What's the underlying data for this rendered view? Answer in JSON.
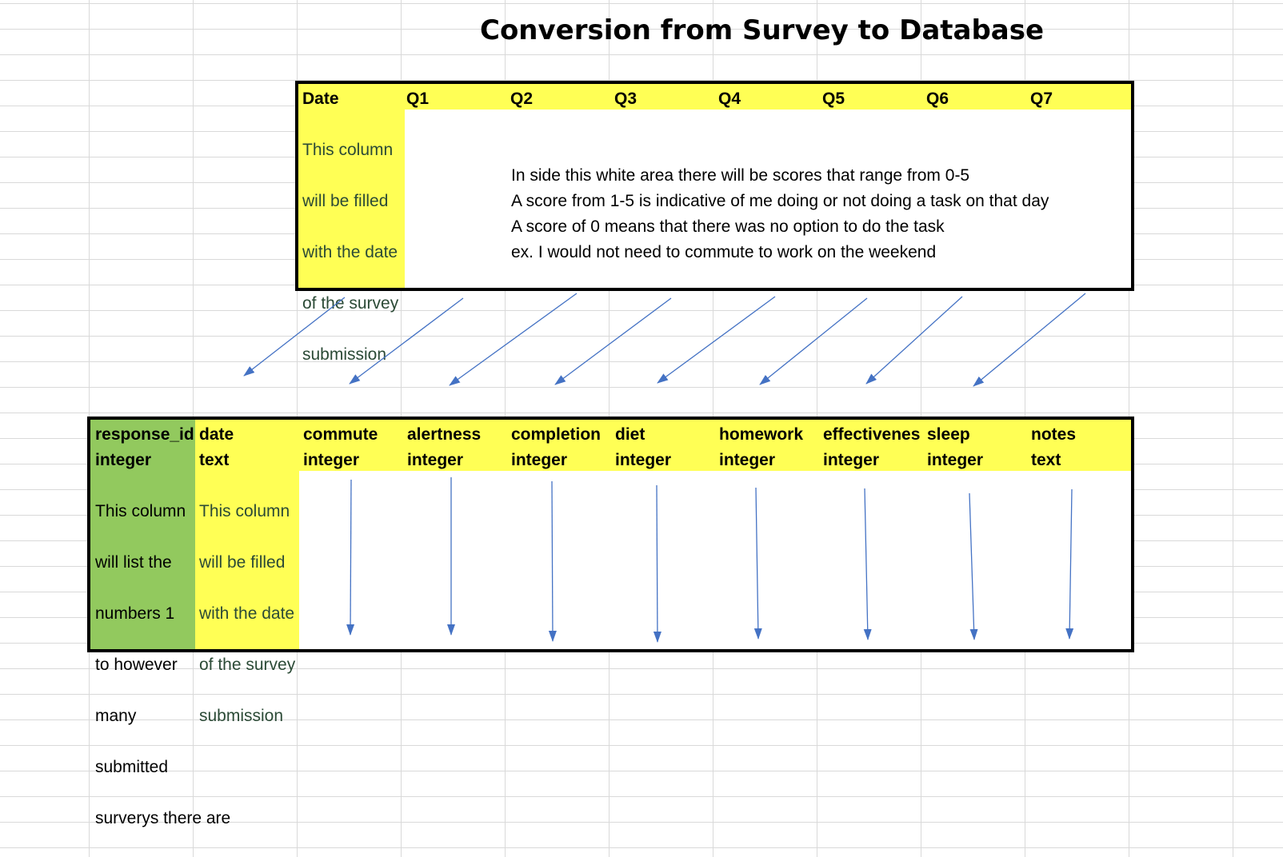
{
  "title": "Conversion from Survey to Database",
  "survey": {
    "headers": [
      "Date",
      "Q1",
      "Q2",
      "Q3",
      "Q4",
      "Q5",
      "Q6",
      "Q7"
    ],
    "date_description_lines": [
      "This column",
      "will be filled",
      "with the date",
      "of the survey",
      "submission"
    ],
    "notes": [
      "In side this white area there will be scores that range from 0-5",
      "A score from 1-5 is indicative of me doing or not doing a task on that day",
      "A score of 0 means that there was no option to do the task",
      "ex. I would not need to commute to work on the weekend"
    ]
  },
  "database": {
    "columns": [
      {
        "name": "response_id",
        "type": "integer"
      },
      {
        "name": "date",
        "type": "text"
      },
      {
        "name": "commute",
        "type": "integer"
      },
      {
        "name": "alertness",
        "type": "integer"
      },
      {
        "name": "completion",
        "type": "integer"
      },
      {
        "name": "diet",
        "type": "integer"
      },
      {
        "name": "homework",
        "type": "integer"
      },
      {
        "name": "effectivenes",
        "type": "integer"
      },
      {
        "name": "sleep",
        "type": "integer"
      },
      {
        "name": "notes",
        "type": "text"
      }
    ],
    "response_id_description_lines": [
      "This column",
      "will list the",
      "numbers 1",
      "to however",
      "many",
      "submitted",
      "surverys there are"
    ],
    "date_description_lines": [
      "This column",
      "will be filled",
      "with the date",
      "of the survey",
      "submission"
    ]
  },
  "colors": {
    "header_fill": "#ffff55",
    "key_fill": "#92c95e",
    "arrow": "#4472c4",
    "grid": "#d9d9d9",
    "border": "#000000"
  }
}
